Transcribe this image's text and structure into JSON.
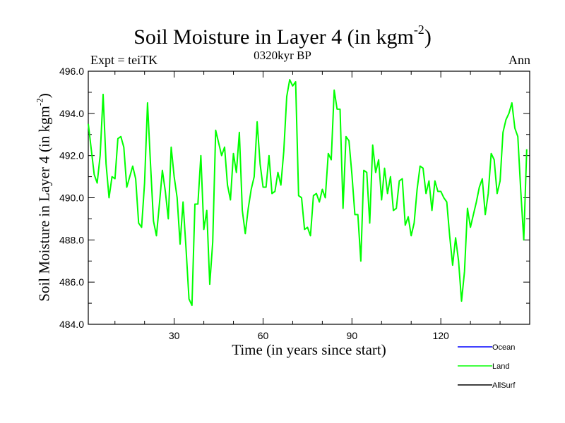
{
  "header": {
    "title": "Soil Moisture in Layer 4 (in kgm",
    "title_sup": "-2",
    "title_close": ")",
    "subtitle": "0320kyr BP",
    "expt": "Expt = teiTK",
    "period": "Ann"
  },
  "axes": {
    "xlabel": "Time (in years since start)",
    "ylabel": "Soil Moisture in Layer 4 (in kgm",
    "ylabel_sup": "-2",
    "ylabel_close": ")"
  },
  "chart_data": {
    "type": "line",
    "title": "Soil Moisture in Layer 4 (in kgm-2)",
    "subtitle": "0320kyr BP",
    "xlabel": "Time (in years since start)",
    "ylabel": "Soil Moisture in Layer 4 (in kgm-2)",
    "xlim": [
      1,
      150
    ],
    "ylim": [
      484,
      496
    ],
    "xticks": [
      30,
      60,
      90,
      120
    ],
    "xtick_labels": [
      "30",
      "60",
      "90",
      "120"
    ],
    "yticks": [
      484,
      486,
      488,
      490,
      492,
      494,
      496
    ],
    "ytick_labels": [
      "484.0",
      "486.0",
      "488.0",
      "490.0",
      "492.0",
      "494.0",
      "496.0"
    ],
    "legend_position": "bottom-right",
    "series": [
      {
        "name": "Ocean",
        "color": "#0000ff",
        "values": []
      },
      {
        "name": "Land",
        "color": "#00ff00",
        "x_start": 1,
        "values": [
          493.5,
          492.3,
          491.1,
          490.7,
          492.0,
          494.9,
          491.6,
          490.0,
          491.0,
          490.9,
          492.8,
          492.9,
          492.4,
          490.5,
          491.0,
          491.5,
          490.9,
          488.8,
          488.6,
          490.7,
          494.5,
          491.6,
          488.9,
          488.2,
          489.7,
          491.3,
          490.3,
          489.0,
          492.4,
          491.0,
          490.0,
          487.8,
          489.8,
          487.6,
          485.2,
          484.9,
          489.7,
          489.7,
          492.0,
          488.5,
          489.4,
          485.9,
          487.9,
          493.2,
          492.6,
          492.0,
          492.4,
          490.6,
          489.9,
          492.1,
          491.2,
          493.1,
          489.4,
          488.3,
          489.5,
          490.4,
          491.0,
          493.6,
          491.6,
          490.5,
          490.5,
          492.0,
          490.2,
          490.3,
          491.2,
          490.6,
          492.2,
          494.8,
          495.6,
          495.3,
          495.5,
          490.1,
          490.0,
          488.5,
          488.6,
          488.2,
          490.1,
          490.2,
          489.8,
          490.4,
          490.0,
          492.1,
          491.8,
          495.1,
          494.2,
          494.2,
          489.5,
          492.9,
          492.7,
          491.1,
          489.2,
          489.2,
          487.0,
          491.3,
          491.2,
          488.8,
          492.5,
          491.2,
          491.8,
          489.9,
          491.4,
          490.2,
          491.0,
          489.4,
          489.5,
          490.8,
          490.9,
          488.7,
          489.1,
          488.2,
          488.8,
          490.4,
          491.5,
          491.4,
          490.2,
          490.8,
          489.4,
          490.8,
          490.3,
          490.3,
          490.0,
          489.8,
          488.2,
          486.8,
          488.1,
          487.0,
          485.1,
          486.5,
          489.5,
          488.6,
          489.2,
          489.8,
          490.5,
          490.9,
          489.2,
          490.2,
          492.1,
          491.8,
          490.2,
          490.8,
          493.1,
          493.7,
          494.0,
          494.5,
          493.3,
          492.9,
          490.3,
          488.0,
          492.3
        ]
      },
      {
        "name": "AllSurf",
        "color": "#000000",
        "values": []
      }
    ]
  }
}
